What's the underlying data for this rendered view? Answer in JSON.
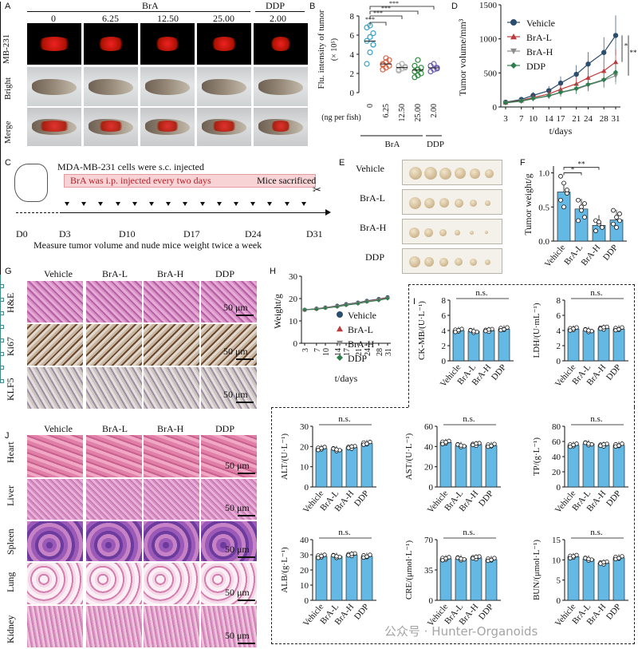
{
  "panels": [
    "A",
    "B",
    "C",
    "D",
    "E",
    "F",
    "G",
    "H",
    "I",
    "J"
  ],
  "panelA": {
    "group_bra": "BrA",
    "group_ddp": "DDP",
    "doses": [
      "0",
      "6.25",
      "12.50",
      "25.00",
      "2.00"
    ],
    "rows": [
      "MB-231",
      "Bright",
      "Merge"
    ]
  },
  "panelB": {
    "ylabel": "Flu. intensity of tumor",
    "ylabel_unit": "(× 10⁵)",
    "yticks": [
      "0",
      "2",
      "4",
      "6",
      "8"
    ],
    "doses": [
      "0",
      "6.25",
      "12.50",
      "25.00",
      "2.00"
    ],
    "dose_unit": "(ng per fish)",
    "group_bra": "BrA",
    "group_ddp": "DDP",
    "sig": [
      "***",
      "***",
      "***",
      "***"
    ]
  },
  "panelC": {
    "cells_text": "MDA-MB-231 cells  were s.c. injected",
    "bra_text": "BrA was i.p. injected every two days",
    "sacrifice_text": "Mice sacrificed",
    "days": [
      "D0",
      "D3",
      "D10",
      "D17",
      "D24",
      "D31"
    ],
    "measure_text": "Measure tumor volume and nude mice weight twice a week"
  },
  "panelD": {
    "ylabel": "Tumor volume/mm³",
    "xlabel": "t/days",
    "yticks": [
      "0",
      "500",
      "1000",
      "1500"
    ],
    "xticks": [
      "3",
      "7",
      "10",
      "14",
      "17",
      "21",
      "24",
      "28",
      "31"
    ],
    "legend": [
      "Vehicle",
      "BrA-L",
      "BrA-H",
      "DDP"
    ],
    "sig": [
      "*",
      "**"
    ]
  },
  "panelE": {
    "rows": [
      "Vehicle",
      "BrA-L",
      "BrA-H",
      "DDP"
    ]
  },
  "panelF": {
    "ylabel": "Tumor weight/g",
    "yticks": [
      "0.0",
      "0.5",
      "1.0"
    ],
    "groups": [
      "Vehicle",
      "BrA-L",
      "BrA-H",
      "DDP"
    ],
    "sig": [
      "*",
      "**"
    ]
  },
  "panelG": {
    "cols": [
      "Vehicle",
      "BrA-L",
      "BrA-H",
      "DDP"
    ],
    "rows": [
      "H&E",
      "Ki67",
      "KLF5"
    ],
    "scale": "50 μm"
  },
  "panelH": {
    "ylabel": "Weight/g",
    "xlabel": "t/days",
    "yticks": [
      "0",
      "10",
      "20",
      "30"
    ],
    "xticks": [
      "3",
      "7",
      "10",
      "14",
      "17",
      "21",
      "24",
      "28",
      "31"
    ],
    "legend": [
      "Vehicle",
      "BrA-L",
      "BrA-H",
      "DDP"
    ]
  },
  "panelI": {
    "groups": [
      "Vehicle",
      "BrA-L",
      "BrA-H",
      "DDP"
    ],
    "ns": "n.s."
  },
  "panelJ": {
    "cols": [
      "Vehicle",
      "BrA-L",
      "BrA-H",
      "DDP"
    ],
    "rows": [
      "Heart",
      "Liver",
      "Spleen",
      "Lung",
      "Kidney"
    ],
    "scale": "50 μm"
  },
  "watermark": "公众号 · Hunter-Organoids",
  "colors": {
    "vehicle": "#2b4d6e",
    "bra_l": "#c0393b",
    "bra_h": "#8c8c8c",
    "ddp": "#2e7d4f",
    "bar": "#63b9e4",
    "pink": "#f8d3d6"
  },
  "chart_data": [
    {
      "id": "B",
      "type": "scatter",
      "categories": [
        "0",
        "6.25",
        "12.50",
        "25.00",
        "2.00"
      ],
      "ylabel": "Flu. intensity of tumor (× 10⁵)",
      "ylim": [
        0,
        8
      ],
      "series": [
        {
          "values": [
            [
              3.0,
              4.2,
              5.0,
              5.4,
              5.8,
              6.2,
              6.8,
              7.0,
              5.0
            ],
            [
              2.4,
              2.6,
              2.8,
              3.0,
              3.2,
              3.4,
              2.9,
              3.6
            ],
            [
              2.3,
              2.5,
              2.6,
              2.8,
              3.0,
              2.7,
              2.4
            ],
            [
              1.6,
              1.8,
              2.0,
              2.2,
              2.4,
              2.6,
              2.8,
              3.4
            ],
            [
              2.2,
              2.4,
              2.6,
              2.8,
              3.0,
              2.5
            ]
          ]
        }
      ]
    },
    {
      "id": "D",
      "type": "line",
      "x": [
        3,
        7,
        10,
        14,
        17,
        21,
        24,
        28,
        31
      ],
      "ylabel": "Tumor volume/mm³",
      "xlabel": "t/days",
      "ylim": [
        0,
        1500
      ],
      "series": [
        {
          "name": "Vehicle",
          "values": [
            70,
            110,
            170,
            240,
            350,
            480,
            630,
            800,
            1050
          ]
        },
        {
          "name": "BrA-L",
          "values": [
            65,
            95,
            140,
            190,
            260,
            340,
            430,
            530,
            660
          ]
        },
        {
          "name": "BrA-H",
          "values": [
            60,
            85,
            120,
            160,
            210,
            260,
            320,
            390,
            460
          ]
        },
        {
          "name": "DDP",
          "values": [
            62,
            88,
            125,
            165,
            215,
            270,
            330,
            400,
            510
          ]
        }
      ]
    },
    {
      "id": "F",
      "type": "bar",
      "categories": [
        "Vehicle",
        "BrA-L",
        "BrA-H",
        "DDP"
      ],
      "values": [
        0.72,
        0.47,
        0.23,
        0.31
      ],
      "ylabel": "Tumor weight/g",
      "ylim": [
        0,
        1.1
      ]
    },
    {
      "id": "H",
      "type": "line",
      "x": [
        3,
        7,
        10,
        14,
        17,
        21,
        24,
        28,
        31
      ],
      "ylabel": "Weight/g",
      "xlabel": "t/days",
      "ylim": [
        0,
        30
      ],
      "series": [
        {
          "name": "Vehicle",
          "values": [
            15,
            15.5,
            16,
            16.8,
            17.5,
            18.2,
            19,
            19.8,
            20.6
          ]
        },
        {
          "name": "BrA-L",
          "values": [
            15,
            15.4,
            15.9,
            16.6,
            17.3,
            18,
            18.8,
            19.6,
            20.4
          ]
        },
        {
          "name": "BrA-H",
          "values": [
            15,
            15.3,
            15.8,
            16.5,
            17.2,
            17.9,
            18.7,
            19.4,
            20.2
          ]
        },
        {
          "name": "DDP",
          "values": [
            15,
            15.2,
            15.7,
            16.3,
            17,
            17.7,
            18.5,
            19.2,
            20
          ]
        }
      ]
    },
    {
      "id": "CK-MB",
      "type": "bar",
      "ylabel": "CK-MB/(U·L⁻¹)",
      "yticks": [
        "0",
        "2",
        "4",
        "6",
        "8"
      ],
      "ylim": [
        0,
        8
      ],
      "categories": [
        "Vehicle",
        "BrA-L",
        "BrA-H",
        "DDP"
      ],
      "values": [
        4.0,
        3.9,
        4.0,
        4.2
      ]
    },
    {
      "id": "LDH",
      "type": "bar",
      "ylabel": "LDH/(U·mL⁻¹)",
      "yticks": [
        "0",
        "2",
        "4",
        "6",
        "8"
      ],
      "ylim": [
        0,
        8
      ],
      "categories": [
        "Vehicle",
        "BrA-L",
        "BrA-H",
        "DDP"
      ],
      "values": [
        4.2,
        4.0,
        4.3,
        4.2
      ]
    },
    {
      "id": "ALT",
      "type": "bar",
      "ylabel": "ALT/(U·L⁻¹)",
      "yticks": [
        "0",
        "10",
        "20",
        "30"
      ],
      "ylim": [
        0,
        30
      ],
      "categories": [
        "Vehicle",
        "BrA-L",
        "BrA-H",
        "DDP"
      ],
      "values": [
        19,
        18.5,
        19.5,
        21.5
      ]
    },
    {
      "id": "AST",
      "type": "bar",
      "ylabel": "AST/(U·L⁻¹)",
      "yticks": [
        "0",
        "20",
        "40",
        "60"
      ],
      "ylim": [
        0,
        60
      ],
      "categories": [
        "Vehicle",
        "BrA-L",
        "BrA-H",
        "DDP"
      ],
      "values": [
        44,
        41,
        42,
        41
      ]
    },
    {
      "id": "TP",
      "type": "bar",
      "ylabel": "TP/(g·L⁻¹)",
      "yticks": [
        "0",
        "20",
        "40",
        "60",
        "80"
      ],
      "ylim": [
        0,
        80
      ],
      "categories": [
        "Vehicle",
        "BrA-L",
        "BrA-H",
        "DDP"
      ],
      "values": [
        55,
        57,
        55,
        55
      ]
    },
    {
      "id": "ALB",
      "type": "bar",
      "ylabel": "ALB/(g·L⁻¹)",
      "yticks": [
        "0",
        "10",
        "20",
        "30",
        "40"
      ],
      "ylim": [
        0,
        40
      ],
      "categories": [
        "Vehicle",
        "BrA-L",
        "BrA-H",
        "DDP"
      ],
      "values": [
        29,
        29,
        30,
        29
      ]
    },
    {
      "id": "CRE",
      "type": "bar",
      "ylabel": "CRE/(μmol·L⁻¹)",
      "yticks": [
        "0",
        "35",
        "70"
      ],
      "ylim": [
        0,
        70
      ],
      "categories": [
        "Vehicle",
        "BrA-L",
        "BrA-H",
        "DDP"
      ],
      "values": [
        48,
        48,
        49,
        47
      ]
    },
    {
      "id": "BUN",
      "type": "bar",
      "ylabel": "BUN/(μmol·L⁻¹)",
      "yticks": [
        "0",
        "5",
        "10",
        "15"
      ],
      "ylim": [
        0,
        15
      ],
      "categories": [
        "Vehicle",
        "BrA-L",
        "BrA-H",
        "DDP"
      ],
      "values": [
        10.8,
        10.2,
        9.2,
        10.5
      ]
    }
  ]
}
